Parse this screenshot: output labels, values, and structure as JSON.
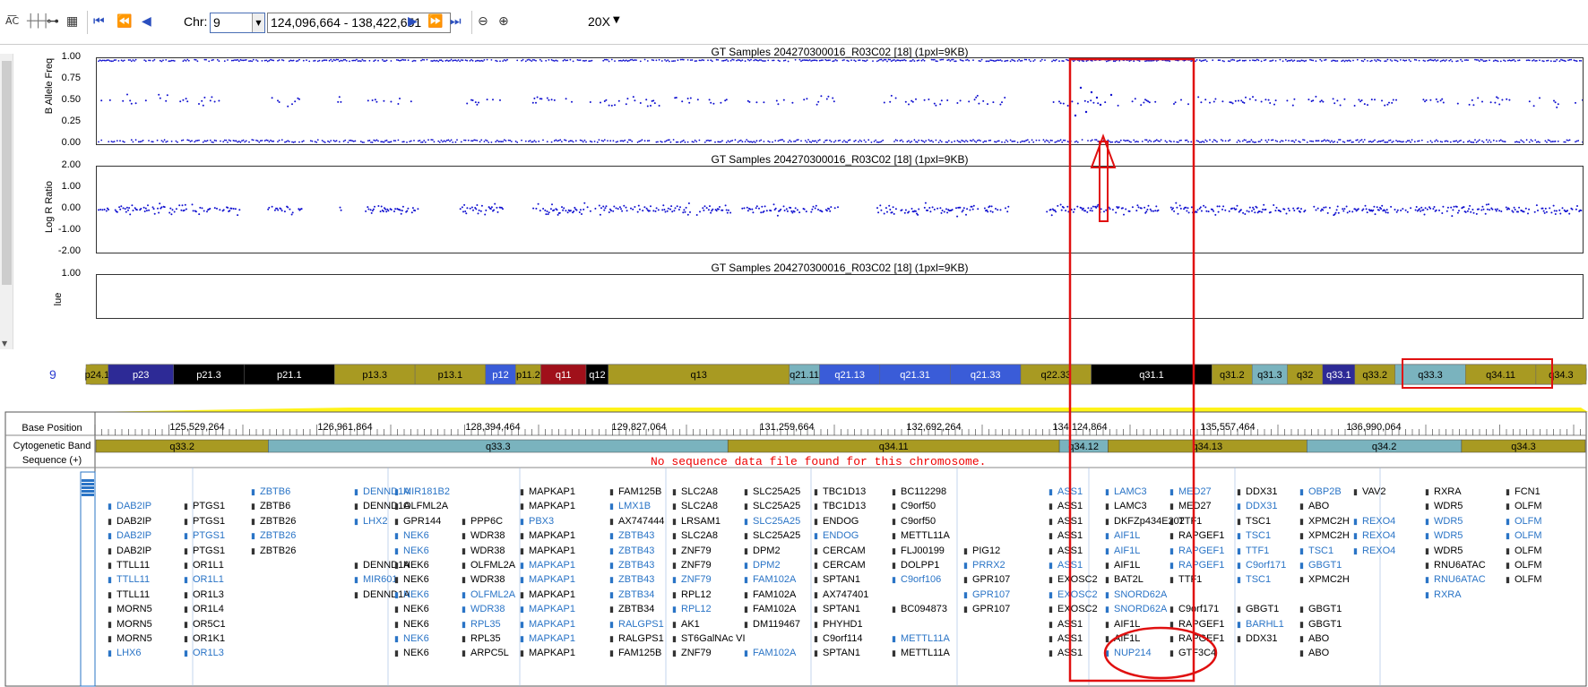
{
  "toolbar": {
    "chr_label": "Chr:",
    "chr_value": "9",
    "range_value": "124,096,664 - 138,422,651",
    "zoom_label": "20X"
  },
  "plots": {
    "title": "GT Samples 204270300016_R03C02 [18]  (1pxl=9KB)",
    "baf": {
      "ylabel": "B Allele Freq",
      "ticks": [
        "1.00",
        "0.75",
        "0.50",
        "0.25",
        "0.00"
      ]
    },
    "lrr": {
      "ylabel": "Log R Ratio",
      "ticks": [
        "2.00",
        "1.00",
        "0.00",
        "-1.00",
        "-2.00"
      ]
    },
    "third": {
      "ylabel": "lue",
      "ticks": [
        "1.00"
      ]
    }
  },
  "chromosome": {
    "number": "9",
    "bands": [
      {
        "label": "p24.1",
        "color": "#a89a22"
      },
      {
        "label": "p23",
        "color": "#2d2a96"
      },
      {
        "label": "p21.3",
        "color": "#000000"
      },
      {
        "label": "p21.1",
        "color": "#000000"
      },
      {
        "label": "p13.3",
        "color": "#a89a22"
      },
      {
        "label": "p13.1",
        "color": "#a89a22"
      },
      {
        "label": "p12",
        "color": "#3a5cd8"
      },
      {
        "label": "p11.2",
        "color": "#a89a22"
      },
      {
        "label": "q11",
        "color": "#a0101a"
      },
      {
        "label": "q12",
        "color": "#000000"
      },
      {
        "label": "q13",
        "color": "#a89a22"
      },
      {
        "label": "q21.11",
        "color": "#7ab3be"
      },
      {
        "label": "q21.13",
        "color": "#3a5cd8"
      },
      {
        "label": "q21.31",
        "color": "#3a5cd8"
      },
      {
        "label": "q21.33",
        "color": "#3a5cd8"
      },
      {
        "label": "q22.33",
        "color": "#a89a22"
      },
      {
        "label": "q31.1",
        "color": "#000000"
      },
      {
        "label": "q31.2",
        "color": "#a89a22"
      },
      {
        "label": "q31.3",
        "color": "#7ab3be"
      },
      {
        "label": "q32",
        "color": "#a89a22"
      },
      {
        "label": "q33.1",
        "color": "#2d2a96"
      },
      {
        "label": "q33.2",
        "color": "#a89a22"
      },
      {
        "label": "q33.3",
        "color": "#7ab3be"
      },
      {
        "label": "q34.11",
        "color": "#a89a22"
      },
      {
        "label": "q34.3",
        "color": "#a89a22"
      }
    ]
  },
  "tracks": {
    "base_position_label": "Base Position",
    "cyto_label": "Cytogenetic Band",
    "seq_label": "Sequence (+)",
    "positions": [
      "125,529,264",
      "126,961,864",
      "128,394,464",
      "129,827,064",
      "131,259,664",
      "132,692,264",
      "134,124,864",
      "135,557,464",
      "136,990,064"
    ],
    "cyto_bands": [
      {
        "label": "q33.2",
        "color": "#a89a22"
      },
      {
        "label": "q33.3",
        "color": "#7ab3be"
      },
      {
        "label": "q34.11",
        "color": "#a89a22"
      },
      {
        "label": "q34.12",
        "color": "#7ab3be"
      },
      {
        "label": "q34.13",
        "color": "#a89a22"
      },
      {
        "label": "q34.2",
        "color": "#7ab3be"
      },
      {
        "label": "q34.3",
        "color": "#a89a22"
      }
    ],
    "no_sequence_message": "No sequence data file found for this chromosome."
  },
  "genes": {
    "columns": [
      {
        "rows": [
          [
            "",
            ""
          ],
          [
            "DAB2IP",
            "b"
          ],
          [
            "DAB2IP",
            "k"
          ],
          [
            "DAB2IP",
            "b"
          ],
          [
            "DAB2IP",
            "k"
          ],
          [
            "TTLL11",
            "k"
          ],
          [
            "TTLL11",
            "b"
          ],
          [
            "TTLL11",
            "k"
          ],
          [
            "MORN5",
            "k"
          ],
          [
            "MORN5",
            "k"
          ],
          [
            "MORN5",
            "k"
          ],
          [
            "LHX6",
            "b"
          ]
        ]
      },
      {
        "rows": [
          [
            "",
            ""
          ],
          [
            "PTGS1",
            "k"
          ],
          [
            "PTGS1",
            "k"
          ],
          [
            "PTGS1",
            "b"
          ],
          [
            "PTGS1",
            "k"
          ],
          [
            "OR1L1",
            "k"
          ],
          [
            "OR1L1",
            "b"
          ],
          [
            "OR1L3",
            "k"
          ],
          [
            "OR1L4",
            "k"
          ],
          [
            "OR5C1",
            "k"
          ],
          [
            "OR1K1",
            "k"
          ],
          [
            "OR1L3",
            "b"
          ]
        ]
      },
      {
        "rows": [
          [
            "ZBTB6",
            "b"
          ],
          [
            "ZBTB6",
            "k"
          ],
          [
            "ZBTB26",
            "k"
          ],
          [
            "ZBTB26",
            "b"
          ],
          [
            "ZBTB26",
            "k"
          ],
          [
            "",
            ""
          ],
          [
            "",
            ""
          ],
          [
            "",
            ""
          ],
          [
            "",
            ""
          ],
          [
            "",
            ""
          ],
          [
            "",
            ""
          ],
          [
            "",
            ""
          ]
        ]
      },
      {
        "rows": [
          [
            "DENND1A",
            "b"
          ],
          [
            "DENND1A",
            "k"
          ],
          [
            "LHX2",
            "b"
          ],
          [
            "",
            ""
          ],
          [
            "",
            ""
          ],
          [
            "DENND1A",
            "k"
          ],
          [
            "MIR601",
            "b"
          ],
          [
            "DENND1A",
            "k"
          ],
          [
            "",
            ""
          ],
          [
            "",
            ""
          ],
          [
            "",
            ""
          ],
          [
            "",
            ""
          ]
        ]
      },
      {
        "rows": [
          [
            "MIR181B2",
            "b"
          ],
          [
            "OLFML2A",
            "k"
          ],
          [
            "GPR144",
            "k"
          ],
          [
            "NEK6",
            "b"
          ],
          [
            "NEK6",
            "b"
          ],
          [
            "NEK6",
            "k"
          ],
          [
            "NEK6",
            "k"
          ],
          [
            "NEK6",
            "b"
          ],
          [
            "NEK6",
            "k"
          ],
          [
            "NEK6",
            "k"
          ],
          [
            "NEK6",
            "b"
          ],
          [
            "NEK6",
            "k"
          ]
        ]
      },
      {
        "rows": [
          [
            "",
            ""
          ],
          [
            "",
            ""
          ],
          [
            "PPP6C",
            "k"
          ],
          [
            "WDR38",
            "k"
          ],
          [
            "WDR38",
            "k"
          ],
          [
            "OLFML2A",
            "k"
          ],
          [
            "WDR38",
            "k"
          ],
          [
            "OLFML2A",
            "b"
          ],
          [
            "WDR38",
            "b"
          ],
          [
            "RPL35",
            "b"
          ],
          [
            "RPL35",
            "k"
          ],
          [
            "ARPC5L",
            "k"
          ]
        ]
      },
      {
        "rows": [
          [
            "MAPKAP1",
            "k"
          ],
          [
            "MAPKAP1",
            "k"
          ],
          [
            "PBX3",
            "b"
          ],
          [
            "MAPKAP1",
            "k"
          ],
          [
            "MAPKAP1",
            "k"
          ],
          [
            "MAPKAP1",
            "b"
          ],
          [
            "MAPKAP1",
            "b"
          ],
          [
            "MAPKAP1",
            "k"
          ],
          [
            "MAPKAP1",
            "b"
          ],
          [
            "MAPKAP1",
            "b"
          ],
          [
            "MAPKAP1",
            "b"
          ],
          [
            "MAPKAP1",
            "k"
          ]
        ]
      },
      {
        "rows": [
          [
            "FAM125B",
            "k"
          ],
          [
            "LMX1B",
            "b"
          ],
          [
            "AX747444",
            "k"
          ],
          [
            "ZBTB43",
            "b"
          ],
          [
            "ZBTB43",
            "b"
          ],
          [
            "ZBTB43",
            "b"
          ],
          [
            "ZBTB43",
            "b"
          ],
          [
            "ZBTB34",
            "b"
          ],
          [
            "ZBTB34",
            "k"
          ],
          [
            "RALGPS1",
            "b"
          ],
          [
            "RALGPS1",
            "k"
          ],
          [
            "FAM125B",
            "k"
          ]
        ]
      },
      {
        "rows": [
          [
            "SLC2A8",
            "k"
          ],
          [
            "SLC2A8",
            "k"
          ],
          [
            "LRSAM1",
            "k"
          ],
          [
            "SLC2A8",
            "k"
          ],
          [
            "ZNF79",
            "k"
          ],
          [
            "ZNF79",
            "k"
          ],
          [
            "ZNF79",
            "b"
          ],
          [
            "RPL12",
            "k"
          ],
          [
            "RPL12",
            "b"
          ],
          [
            "AK1",
            "k"
          ],
          [
            "ST6GalNAc VI",
            "k"
          ],
          [
            "ZNF79",
            "k"
          ]
        ]
      },
      {
        "rows": [
          [
            "SLC25A25",
            "k"
          ],
          [
            "SLC25A25",
            "k"
          ],
          [
            "SLC25A25",
            "b"
          ],
          [
            "SLC25A25",
            "k"
          ],
          [
            "DPM2",
            "k"
          ],
          [
            "DPM2",
            "b"
          ],
          [
            "FAM102A",
            "b"
          ],
          [
            "FAM102A",
            "k"
          ],
          [
            "FAM102A",
            "k"
          ],
          [
            "DM119467",
            "k"
          ],
          [
            "",
            ""
          ],
          [
            "FAM102A",
            "b"
          ]
        ]
      },
      {
        "rows": [
          [
            "TBC1D13",
            "k"
          ],
          [
            "TBC1D13",
            "k"
          ],
          [
            "ENDOG",
            "k"
          ],
          [
            "ENDOG",
            "b"
          ],
          [
            "CERCAM",
            "k"
          ],
          [
            "CERCAM",
            "k"
          ],
          [
            "SPTAN1",
            "k"
          ],
          [
            "AX747401",
            "k"
          ],
          [
            "SPTAN1",
            "k"
          ],
          [
            "PHYHD1",
            "k"
          ],
          [
            "C9orf114",
            "k"
          ],
          [
            "SPTAN1",
            "k"
          ]
        ]
      },
      {
        "rows": [
          [
            "BC112298",
            "k"
          ],
          [
            "C9orf50",
            "k"
          ],
          [
            "C9orf50",
            "k"
          ],
          [
            "METTL11A",
            "k"
          ],
          [
            "FLJ00199",
            "k"
          ],
          [
            "DOLPP1",
            "k"
          ],
          [
            "C9orf106",
            "b"
          ],
          [
            "",
            ""
          ],
          [
            "BC094873",
            "k"
          ],
          [
            "",
            ""
          ],
          [
            "METTL11A",
            "b"
          ],
          [
            "METTL11A",
            "k"
          ]
        ]
      },
      {
        "rows": [
          [
            "",
            ""
          ],
          [
            "",
            ""
          ],
          [
            "",
            ""
          ],
          [
            "",
            ""
          ],
          [
            "PIG12",
            "k"
          ],
          [
            "PRRX2",
            "b"
          ],
          [
            "GPR107",
            "k"
          ],
          [
            "GPR107",
            "b"
          ],
          [
            "GPR107",
            "k"
          ],
          [
            "",
            ""
          ],
          [
            "",
            ""
          ],
          [
            "",
            ""
          ]
        ]
      },
      {
        "rows": [
          [
            "ASS1",
            "b"
          ],
          [
            "ASS1",
            "k"
          ],
          [
            "ASS1",
            "k"
          ],
          [
            "ASS1",
            "k"
          ],
          [
            "ASS1",
            "k"
          ],
          [
            "ASS1",
            "b"
          ],
          [
            "EXOSC2",
            "k"
          ],
          [
            "EXOSC2",
            "b"
          ],
          [
            "EXOSC2",
            "k"
          ],
          [
            "ASS1",
            "k"
          ],
          [
            "ASS1",
            "k"
          ],
          [
            "ASS1",
            "k"
          ]
        ]
      },
      {
        "rows": [
          [
            "LAMC3",
            "b"
          ],
          [
            "LAMC3",
            "k"
          ],
          [
            "DKFZp434E202",
            "k"
          ],
          [
            "AIF1L",
            "b"
          ],
          [
            "AIF1L",
            "b"
          ],
          [
            "AIF1L",
            "k"
          ],
          [
            "BAT2L",
            "k"
          ],
          [
            "SNORD62A",
            "b"
          ],
          [
            "SNORD62A",
            "b"
          ],
          [
            "AIF1L",
            "k"
          ],
          [
            "AIF1L",
            "k"
          ],
          [
            "NUP214",
            "b"
          ]
        ]
      },
      {
        "rows": [
          [
            "MED27",
            "b"
          ],
          [
            "MED27",
            "k"
          ],
          [
            "TTF1",
            "k"
          ],
          [
            "RAPGEF1",
            "k"
          ],
          [
            "RAPGEF1",
            "b"
          ],
          [
            "RAPGEF1",
            "b"
          ],
          [
            "TTF1",
            "k"
          ],
          [
            "",
            ""
          ],
          [
            "C9orf171",
            "k"
          ],
          [
            "RAPGEF1",
            "k"
          ],
          [
            "RAPGEF1",
            "k"
          ],
          [
            "GTF3C4",
            "k"
          ]
        ]
      },
      {
        "rows": [
          [
            "DDX31",
            "k"
          ],
          [
            "DDX31",
            "b"
          ],
          [
            "TSC1",
            "k"
          ],
          [
            "TSC1",
            "b"
          ],
          [
            "TTF1",
            "b"
          ],
          [
            "C9orf171",
            "b"
          ],
          [
            "TSC1",
            "b"
          ],
          [
            "",
            ""
          ],
          [
            "GBGT1",
            "k"
          ],
          [
            "BARHL1",
            "b"
          ],
          [
            "DDX31",
            "k"
          ],
          [
            "",
            ""
          ]
        ]
      },
      {
        "rows": [
          [
            "OBP2B",
            "b"
          ],
          [
            "ABO",
            "k"
          ],
          [
            "XPMC2H",
            "k"
          ],
          [
            "XPMC2H",
            "k"
          ],
          [
            "TSC1",
            "b"
          ],
          [
            "GBGT1",
            "b"
          ],
          [
            "XPMC2H",
            "k"
          ],
          [
            "",
            ""
          ],
          [
            "GBGT1",
            "k"
          ],
          [
            "GBGT1",
            "k"
          ],
          [
            "ABO",
            "k"
          ],
          [
            "ABO",
            "k"
          ]
        ]
      },
      {
        "rows": [
          [
            "VAV2",
            "k"
          ],
          [
            "",
            ""
          ],
          [
            "REXO4",
            "b"
          ],
          [
            "REXO4",
            "b"
          ],
          [
            "REXO4",
            "b"
          ],
          [
            "",
            ""
          ],
          [
            "",
            ""
          ],
          [
            "",
            ""
          ],
          [
            "",
            ""
          ],
          [
            "",
            ""
          ],
          [
            "",
            ""
          ],
          [
            "",
            ""
          ]
        ]
      },
      {
        "rows": [
          [
            "RXRA",
            "k"
          ],
          [
            "WDR5",
            "k"
          ],
          [
            "WDR5",
            "b"
          ],
          [
            "WDR5",
            "b"
          ],
          [
            "WDR5",
            "k"
          ],
          [
            "RNU6ATAC",
            "k"
          ],
          [
            "RNU6ATAC",
            "b"
          ],
          [
            "RXRA",
            "b"
          ],
          [
            "",
            ""
          ],
          [
            "",
            ""
          ],
          [
            "",
            ""
          ],
          [
            "",
            ""
          ]
        ]
      },
      {
        "rows": [
          [
            "FCN1",
            "k"
          ],
          [
            "OLFM",
            "k"
          ],
          [
            "OLFM",
            "b"
          ],
          [
            "OLFM",
            "b"
          ],
          [
            "OLFM",
            "k"
          ],
          [
            "OLFM",
            "k"
          ],
          [
            "OLFM",
            "k"
          ],
          [
            "",
            ""
          ],
          [
            "",
            ""
          ],
          [
            "",
            ""
          ],
          [
            "",
            ""
          ],
          [
            "",
            ""
          ]
        ]
      }
    ]
  },
  "colors": {
    "point": "#1010d0",
    "highlight": "#e01010",
    "gene_blue": "#2a74c6"
  }
}
